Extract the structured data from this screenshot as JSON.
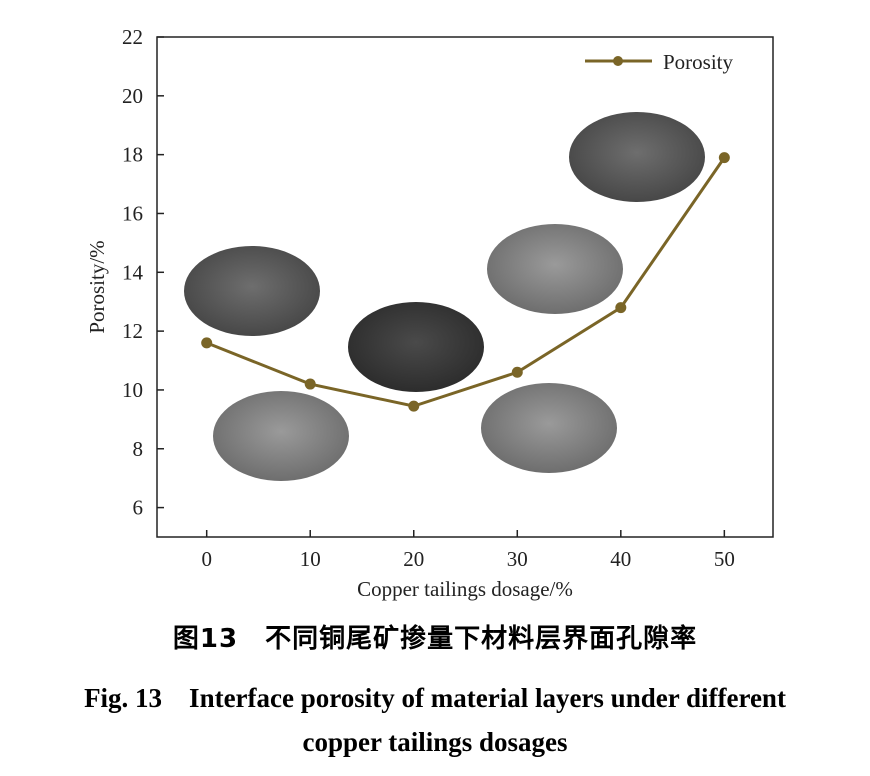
{
  "chart_data": {
    "type": "line",
    "title": "",
    "xlabel": "Copper tailings dosage/%",
    "ylabel": "Porosity/%",
    "x": [
      0,
      10,
      20,
      30,
      40,
      50
    ],
    "series": [
      {
        "name": "Porosity",
        "values": [
          11.6,
          10.2,
          9.45,
          10.6,
          12.8,
          17.9
        ],
        "color": "#7a6527"
      }
    ],
    "xticks": [
      "0",
      "10",
      "20",
      "30",
      "40",
      "50"
    ],
    "yticks": [
      "6",
      "8",
      "10",
      "12",
      "14",
      "16",
      "18",
      "20",
      "22"
    ],
    "xlim": [
      -4.8,
      54.7
    ],
    "ylim": [
      5,
      22
    ],
    "grid": false,
    "legend": "top-right"
  },
  "caption": {
    "cn": "图13　不同铜尾矿掺量下材料层界面孔隙率",
    "en_line1": "Fig. 13　Interface porosity of material layers under different",
    "en_line2": "copper tailings dosages"
  }
}
